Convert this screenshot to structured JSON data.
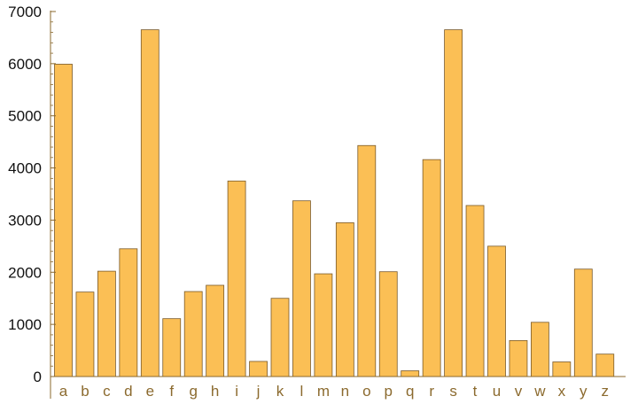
{
  "chart_data": {
    "type": "bar",
    "title": "",
    "xlabel": "",
    "ylabel": "",
    "ylim": [
      0,
      7000
    ],
    "yticks": [
      0,
      1000,
      2000,
      3000,
      4000,
      5000,
      6000,
      7000
    ],
    "categories": [
      "a",
      "b",
      "c",
      "d",
      "e",
      "f",
      "g",
      "h",
      "i",
      "j",
      "k",
      "l",
      "m",
      "n",
      "o",
      "p",
      "q",
      "r",
      "s",
      "t",
      "u",
      "v",
      "w",
      "x",
      "y",
      "z"
    ],
    "values": [
      5990,
      1620,
      2020,
      2450,
      6650,
      1110,
      1630,
      1750,
      3750,
      290,
      1500,
      3370,
      1970,
      2950,
      4430,
      2010,
      110,
      4160,
      6650,
      3280,
      2500,
      690,
      1040,
      280,
      2060,
      430
    ],
    "grid": false,
    "colors": {
      "bar_fill": "#fbbf55",
      "bar_stroke": "#7a5a2a",
      "axis": "#8b6a2e"
    }
  }
}
